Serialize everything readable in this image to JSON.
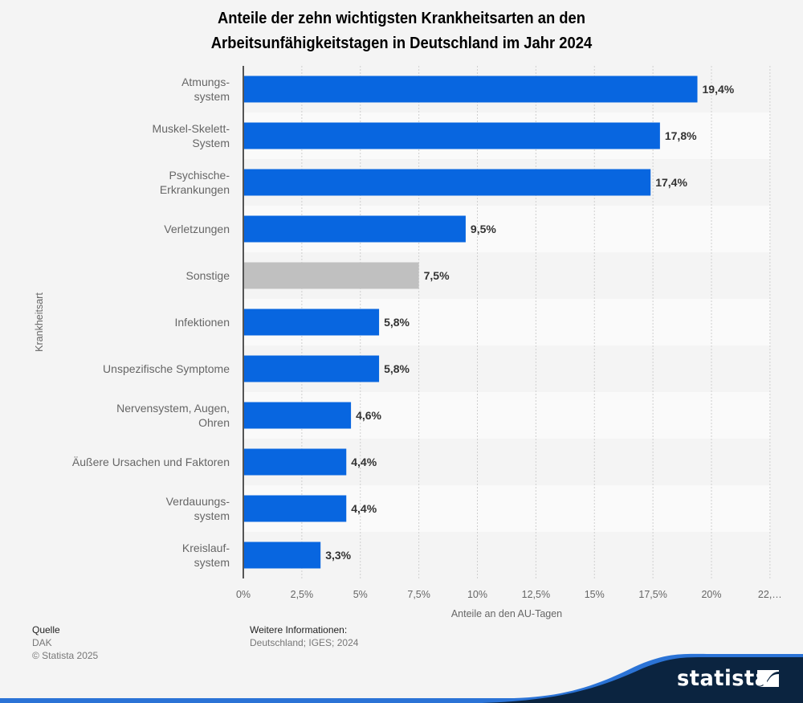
{
  "title": {
    "line1": "Anteile der zehn wichtigsten Krankheitsarten an den",
    "line2": "Arbeitsunfähigkeitstagen in Deutschland im Jahr 2024"
  },
  "chart_data": {
    "type": "bar",
    "orientation": "horizontal",
    "title": "Anteile der zehn wichtigsten Krankheitsarten an den Arbeitsunfähigkeitstagen in Deutschland im Jahr 2024",
    "xlabel": "Anteile an den AU-Tagen",
    "ylabel": "Krankheitsart",
    "xlim": [
      0,
      22.5
    ],
    "grid": true,
    "categories": [
      [
        "Atmungs-",
        "system"
      ],
      [
        "Muskel-Skelett-",
        "System"
      ],
      [
        "Psychische-",
        "Erkrankungen"
      ],
      [
        "Verletzungen"
      ],
      [
        "Sonstige"
      ],
      [
        "Infektionen"
      ],
      [
        "Unspezifische Symptome"
      ],
      [
        "Nervensystem, Augen,",
        "Ohren"
      ],
      [
        "Äußere Ursachen und Faktoren"
      ],
      [
        "Verdauungs-",
        "system"
      ],
      [
        "Kreislauf-",
        "system"
      ]
    ],
    "values": [
      19.4,
      17.8,
      17.4,
      9.5,
      7.5,
      5.8,
      5.8,
      4.6,
      4.4,
      4.4,
      3.3
    ],
    "value_labels": [
      "19,4%",
      "17,8%",
      "17,4%",
      "9,5%",
      "7,5%",
      "5,8%",
      "5,8%",
      "4,6%",
      "4,4%",
      "4,4%",
      "3,3%"
    ],
    "highlight": [
      false,
      false,
      false,
      false,
      true,
      false,
      false,
      false,
      false,
      false,
      false
    ],
    "ticks": [
      0,
      2.5,
      5,
      7.5,
      10,
      12.5,
      15,
      17.5,
      20,
      22.5
    ],
    "tick_labels": [
      "0%",
      "2,5%",
      "5%",
      "7,5%",
      "10%",
      "12,5%",
      "15%",
      "17,5%",
      "20%",
      "22,…"
    ],
    "colors": {
      "bar": "#0866e0",
      "highlight_bar": "#c0c0c0"
    }
  },
  "footer": {
    "source_heading": "Quelle",
    "source": "DAK",
    "copyright": "© Statista 2025",
    "info_heading": "Weitere Informationen:",
    "info": "Deutschland; IGES; 2024"
  },
  "brand": {
    "name": "statista"
  }
}
